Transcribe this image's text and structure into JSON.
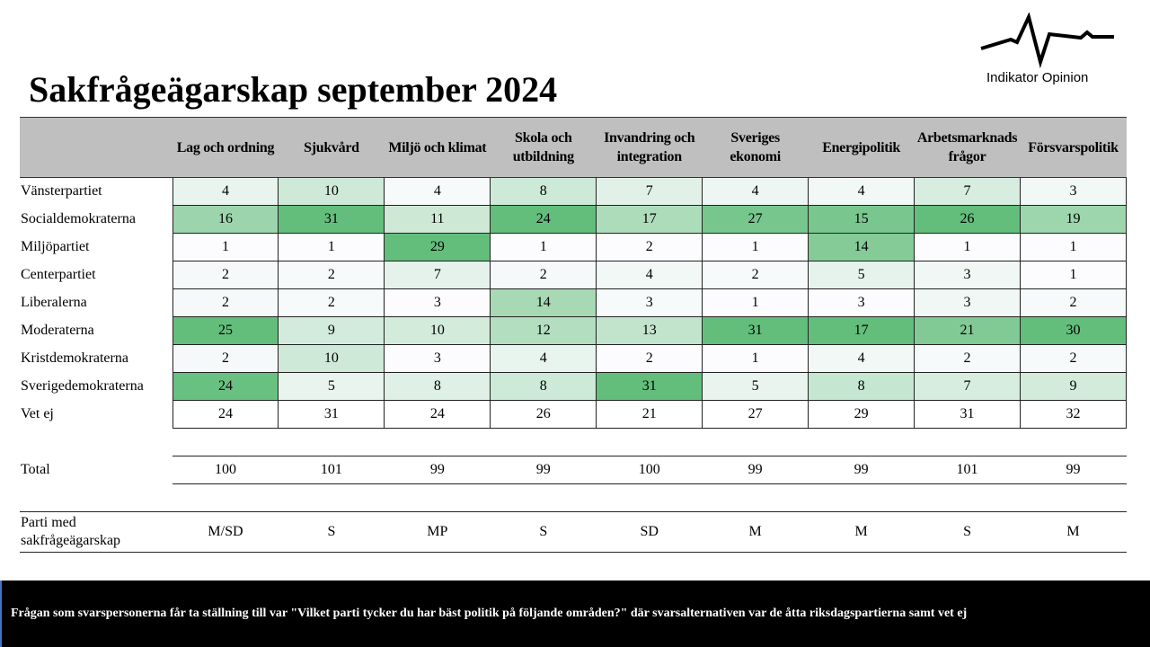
{
  "title": "Sakfrågeägarskap september 2024",
  "logo": {
    "text": "Indikator Opinion"
  },
  "columns": [
    "Lag och ordning",
    "Sjukvård",
    "Miljö och klimat",
    "Skola och utbildning",
    "Invandring och integration",
    "Sveriges ekonomi",
    "Energipolitik",
    "Arbetsmarknadsfrågor",
    "Försvarspolitik"
  ],
  "rows": [
    {
      "label": "Vänsterpartiet",
      "values": [
        4,
        10,
        4,
        8,
        7,
        4,
        4,
        7,
        3
      ]
    },
    {
      "label": "Socialdemokraterna",
      "values": [
        16,
        31,
        11,
        24,
        17,
        27,
        15,
        26,
        19
      ]
    },
    {
      "label": "Miljöpartiet",
      "values": [
        1,
        1,
        29,
        1,
        2,
        1,
        14,
        1,
        1
      ]
    },
    {
      "label": "Centerpartiet",
      "values": [
        2,
        2,
        7,
        2,
        4,
        2,
        5,
        3,
        1
      ]
    },
    {
      "label": "Liberalerna",
      "values": [
        2,
        2,
        3,
        14,
        3,
        1,
        3,
        3,
        2
      ]
    },
    {
      "label": "Moderaterna",
      "values": [
        25,
        9,
        10,
        12,
        13,
        31,
        17,
        21,
        30
      ]
    },
    {
      "label": "Kristdemokraterna",
      "values": [
        2,
        10,
        3,
        4,
        2,
        1,
        4,
        2,
        2
      ]
    },
    {
      "label": "Sverigedemokraterna",
      "values": [
        24,
        5,
        8,
        8,
        31,
        5,
        8,
        7,
        9
      ]
    }
  ],
  "vet_ej": {
    "label": "Vet ej",
    "values": [
      24,
      31,
      24,
      26,
      21,
      27,
      29,
      31,
      32
    ]
  },
  "total": {
    "label": "Total",
    "values": [
      100,
      101,
      99,
      99,
      100,
      99,
      99,
      101,
      99
    ]
  },
  "owner": {
    "label": "Parti med sakfrågeägarskap",
    "values": [
      "M/SD",
      "S",
      "MP",
      "S",
      "SD",
      "M",
      "M",
      "S",
      "M"
    ]
  },
  "colors": {
    "low": "#fcfcff",
    "high": "#63be7b"
  },
  "footer": "Frågan som svarspersonerna får ta ställning till var \"Vilket parti tycker du har bäst politik på följande områden?\" där svarsalternativen var de åtta riksdagspartierna samt vet ej"
}
